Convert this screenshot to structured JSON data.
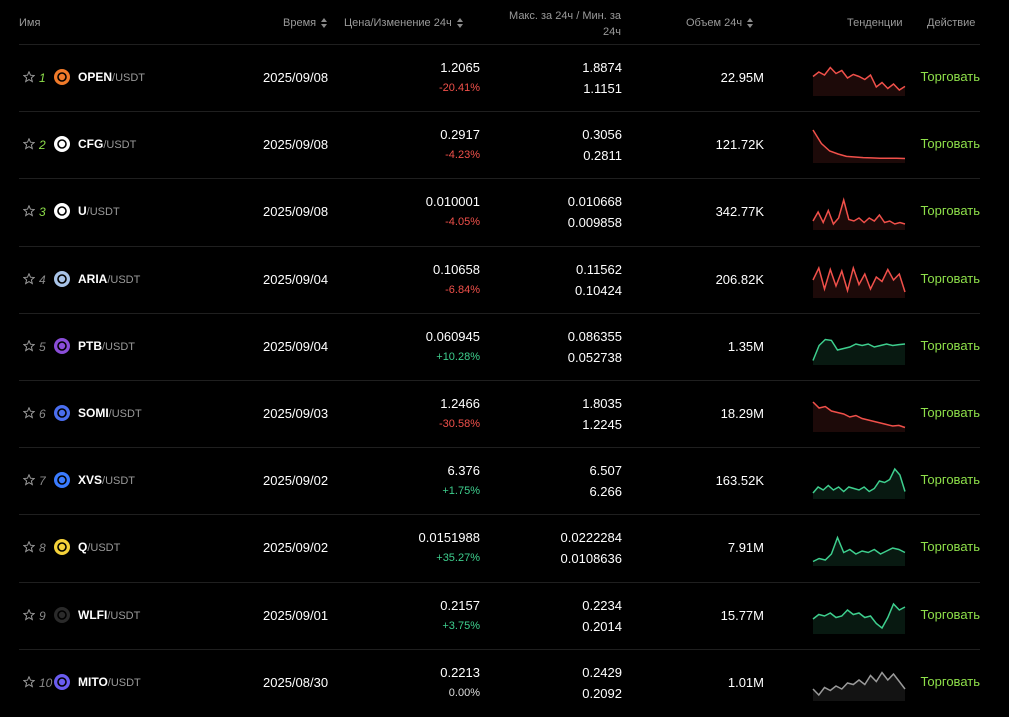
{
  "header": {
    "name": "Имя",
    "time": "Время",
    "price_change": "Цена/Изменение 24ч",
    "high_low_line1": "Макс. за 24ч / Мин. за",
    "high_low_line2": "24ч",
    "volume": "Объем 24ч",
    "trends": "Тенденции",
    "action": "Действие"
  },
  "colors": {
    "up": "#3ecf8e",
    "down": "#f0504a",
    "flat": "#9a9a9a",
    "accent": "#8ee04a"
  },
  "rows": [
    {
      "rank": "1",
      "base": "OPEN",
      "quote": "/USDT",
      "date": "2025/09/08",
      "price": "1.2065",
      "change": "-20.41%",
      "dir": "neg",
      "high": "1.8874",
      "low": "1.1151",
      "volume": "22.95M",
      "action": "Торговать",
      "icon": "open-logo-icon",
      "logo_color": "#f07a2a",
      "spark": [
        0.55,
        0.7,
        0.6,
        0.85,
        0.65,
        0.75,
        0.5,
        0.62,
        0.55,
        0.45,
        0.6,
        0.2,
        0.35,
        0.15,
        0.3,
        0.1,
        0.22
      ]
    },
    {
      "rank": "2",
      "base": "CFG",
      "quote": "/USDT",
      "date": "2025/09/08",
      "price": "0.2917",
      "change": "-4.23%",
      "dir": "neg",
      "high": "0.3056",
      "low": "0.2811",
      "volume": "121.72K",
      "action": "Торговать",
      "icon": "cfg-logo-icon",
      "logo_color": "#ffffff",
      "spark": [
        1.0,
        0.55,
        0.3,
        0.2,
        0.12,
        0.1,
        0.08,
        0.07,
        0.06,
        0.06,
        0.06,
        0.05
      ]
    },
    {
      "rank": "3",
      "base": "U",
      "quote": "/USDT",
      "date": "2025/09/08",
      "price": "0.010001",
      "change": "-4.05%",
      "dir": "neg",
      "high": "0.010668",
      "low": "0.009858",
      "volume": "342.77K",
      "action": "Торговать",
      "icon": "u-logo-icon",
      "logo_color": "#ffffff",
      "spark": [
        0.2,
        0.5,
        0.15,
        0.55,
        0.1,
        0.3,
        0.9,
        0.25,
        0.2,
        0.3,
        0.15,
        0.3,
        0.2,
        0.4,
        0.15,
        0.2,
        0.1,
        0.15,
        0.1
      ]
    },
    {
      "rank": "4",
      "base": "ARIA",
      "quote": "/USDT",
      "date": "2025/09/04",
      "price": "0.10658",
      "change": "-6.84%",
      "dir": "neg",
      "high": "0.11562",
      "low": "0.10424",
      "volume": "206.82K",
      "action": "Торговать",
      "icon": "aria-logo-icon",
      "logo_color": "#a9c4e8",
      "spark": [
        0.5,
        0.9,
        0.2,
        0.85,
        0.3,
        0.8,
        0.15,
        0.9,
        0.35,
        0.7,
        0.2,
        0.6,
        0.45,
        0.85,
        0.5,
        0.7,
        0.1
      ]
    },
    {
      "rank": "5",
      "base": "PTB",
      "quote": "/USDT",
      "date": "2025/09/04",
      "price": "0.060945",
      "change": "+10.28%",
      "dir": "pos",
      "high": "0.086355",
      "low": "0.052738",
      "volume": "1.35M",
      "action": "Торговать",
      "icon": "ptb-logo-icon",
      "logo_color": "#8a4dd8",
      "spark": [
        0.05,
        0.55,
        0.75,
        0.72,
        0.4,
        0.45,
        0.5,
        0.6,
        0.55,
        0.6,
        0.5,
        0.55,
        0.6,
        0.55,
        0.58,
        0.6
      ]
    },
    {
      "rank": "6",
      "base": "SOMI",
      "quote": "/USDT",
      "date": "2025/09/03",
      "price": "1.2466",
      "change": "-30.58%",
      "dir": "neg",
      "high": "1.8035",
      "low": "1.2245",
      "volume": "18.29M",
      "action": "Торговать",
      "icon": "somi-logo-icon",
      "logo_color": "#4a6ef0",
      "spark": [
        0.9,
        0.7,
        0.75,
        0.6,
        0.55,
        0.5,
        0.4,
        0.45,
        0.35,
        0.3,
        0.25,
        0.2,
        0.15,
        0.1,
        0.12,
        0.05
      ]
    },
    {
      "rank": "7",
      "base": "XVS",
      "quote": "/USDT",
      "date": "2025/09/02",
      "price": "6.376",
      "change": "+1.75%",
      "dir": "pos",
      "high": "6.507",
      "low": "6.266",
      "volume": "163.52K",
      "action": "Торговать",
      "icon": "xvs-logo-icon",
      "logo_color": "#3a7bff",
      "spark": [
        0.1,
        0.3,
        0.2,
        0.35,
        0.2,
        0.3,
        0.15,
        0.3,
        0.25,
        0.2,
        0.3,
        0.15,
        0.25,
        0.5,
        0.45,
        0.55,
        0.9,
        0.7,
        0.15
      ]
    },
    {
      "rank": "8",
      "base": "Q",
      "quote": "/USDT",
      "date": "2025/09/02",
      "price": "0.0151988",
      "change": "+35.27%",
      "dir": "pos",
      "high": "0.0222284",
      "low": "0.0108636",
      "volume": "7.91M",
      "action": "Торговать",
      "icon": "q-logo-icon",
      "logo_color": "#f5d23a",
      "spark": [
        0.05,
        0.15,
        0.1,
        0.3,
        0.85,
        0.35,
        0.45,
        0.3,
        0.4,
        0.35,
        0.45,
        0.3,
        0.4,
        0.5,
        0.45,
        0.35
      ]
    },
    {
      "rank": "9",
      "base": "WLFI",
      "quote": "/USDT",
      "date": "2025/09/01",
      "price": "0.2157",
      "change": "+3.75%",
      "dir": "pos",
      "high": "0.2234",
      "low": "0.2014",
      "volume": "15.77M",
      "action": "Торговать",
      "icon": "wlfi-logo-icon",
      "logo_color": "#2a2a2a",
      "spark": [
        0.4,
        0.55,
        0.5,
        0.6,
        0.45,
        0.5,
        0.7,
        0.55,
        0.6,
        0.45,
        0.5,
        0.25,
        0.1,
        0.45,
        0.9,
        0.7,
        0.8
      ]
    },
    {
      "rank": "10",
      "base": "MITO",
      "quote": "/USDT",
      "date": "2025/08/30",
      "price": "0.2213",
      "change": "0.00%",
      "dir": "zero",
      "high": "0.2429",
      "low": "0.2092",
      "volume": "1.01M",
      "action": "Торговать",
      "icon": "mito-logo-icon",
      "logo_color": "#6a5cf0",
      "spark": [
        0.3,
        0.1,
        0.35,
        0.25,
        0.4,
        0.3,
        0.5,
        0.45,
        0.6,
        0.45,
        0.75,
        0.55,
        0.85,
        0.6,
        0.8,
        0.55,
        0.3
      ]
    }
  ]
}
